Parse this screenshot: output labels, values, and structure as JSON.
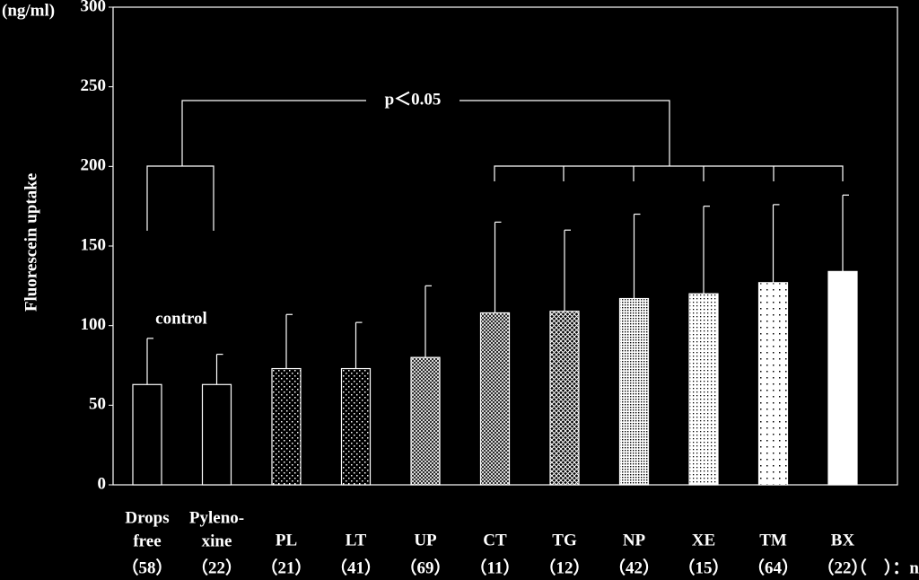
{
  "chart_data": {
    "type": "bar",
    "y_unit": "(ng/ml)",
    "ylabel": "Fluorescein  uptake",
    "categories": [
      [
        "Drops",
        "free"
      ],
      [
        "Pyleno-",
        "xine"
      ],
      [
        "PL"
      ],
      [
        "LT"
      ],
      [
        "UP"
      ],
      [
        "CT"
      ],
      [
        "TG"
      ],
      [
        "NP"
      ],
      [
        "XE"
      ],
      [
        "TM"
      ],
      [
        "BX"
      ]
    ],
    "n_labels": [
      "（58）",
      "（22）",
      "（21）",
      "（41）",
      "（69）",
      "（11）",
      "（12）",
      "（42）",
      "（15）",
      "（64）",
      "（22）"
    ],
    "n_note": "（　）：n",
    "values": [
      63,
      63,
      73,
      73,
      80,
      108,
      109,
      117,
      120,
      127,
      134
    ],
    "errors": [
      29,
      19,
      34,
      29,
      45,
      57,
      51,
      53,
      55,
      49,
      48
    ],
    "patterns": [
      "none",
      "none",
      "dots-sparse",
      "dots-sparse",
      "cross-dense",
      "cross-dense",
      "cross-medium",
      "dots-dense",
      "dots-medium",
      "dots-light",
      "solid"
    ],
    "ylim": [
      0,
      300
    ],
    "yticks": [
      0,
      50,
      100,
      150,
      200,
      250,
      300
    ],
    "annotations": {
      "control": "control",
      "significance": "p＜0.05"
    }
  }
}
